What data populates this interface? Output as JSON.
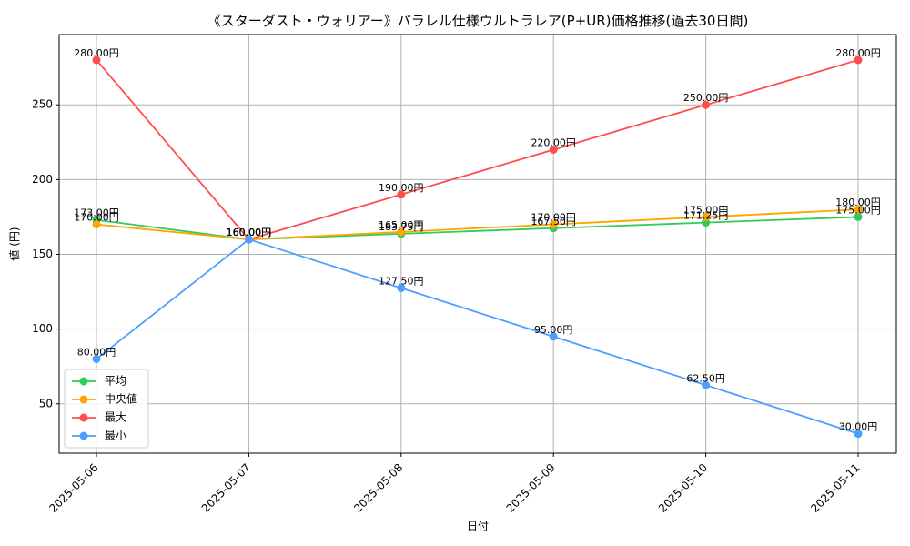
{
  "chart_data": {
    "type": "line",
    "title": "《スターダスト・ウォリアー》パラレル仕様ウルトラレア(P+UR)価格推移(過去30日間)",
    "xlabel": "日付",
    "ylabel": "値 (円)",
    "categories": [
      "2025-05-06",
      "2025-05-07",
      "2025-05-08",
      "2025-05-09",
      "2025-05-10",
      "2025-05-11"
    ],
    "ylim": [
      17,
      297
    ],
    "yticks": [
      50,
      100,
      150,
      200,
      250
    ],
    "grid": true,
    "legend_position": "bottom-left",
    "series": [
      {
        "name": "平均",
        "color": "#2ecc5a",
        "values": [
          173.0,
          160.0,
          163.75,
          167.5,
          171.25,
          175.0
        ],
        "labels": [
          "173.00円",
          "160.00円",
          "163.75円",
          "167.50円",
          "171.25円",
          "175.00円"
        ]
      },
      {
        "name": "中央値",
        "color": "#ffa500",
        "values": [
          170.0,
          160.0,
          165.0,
          170.0,
          175.0,
          180.0
        ],
        "labels": [
          "170.00円",
          "160.00円",
          "165.00円",
          "170.00円",
          "175.00円",
          "180.00円"
        ]
      },
      {
        "name": "最大",
        "color": "#ff4d4d",
        "values": [
          280.0,
          160.0,
          190.0,
          220.0,
          250.0,
          280.0
        ],
        "labels": [
          "280.00円",
          "160.00円",
          "190.00円",
          "220.00円",
          "250.00円",
          "280.00円"
        ]
      },
      {
        "name": "最小",
        "color": "#4d9fff",
        "values": [
          80.0,
          160.0,
          127.5,
          95.0,
          62.5,
          30.0
        ],
        "labels": [
          "80.00円",
          "160.00円",
          "127.50円",
          "95.00円",
          "62.50円",
          "30.00円"
        ]
      }
    ]
  }
}
